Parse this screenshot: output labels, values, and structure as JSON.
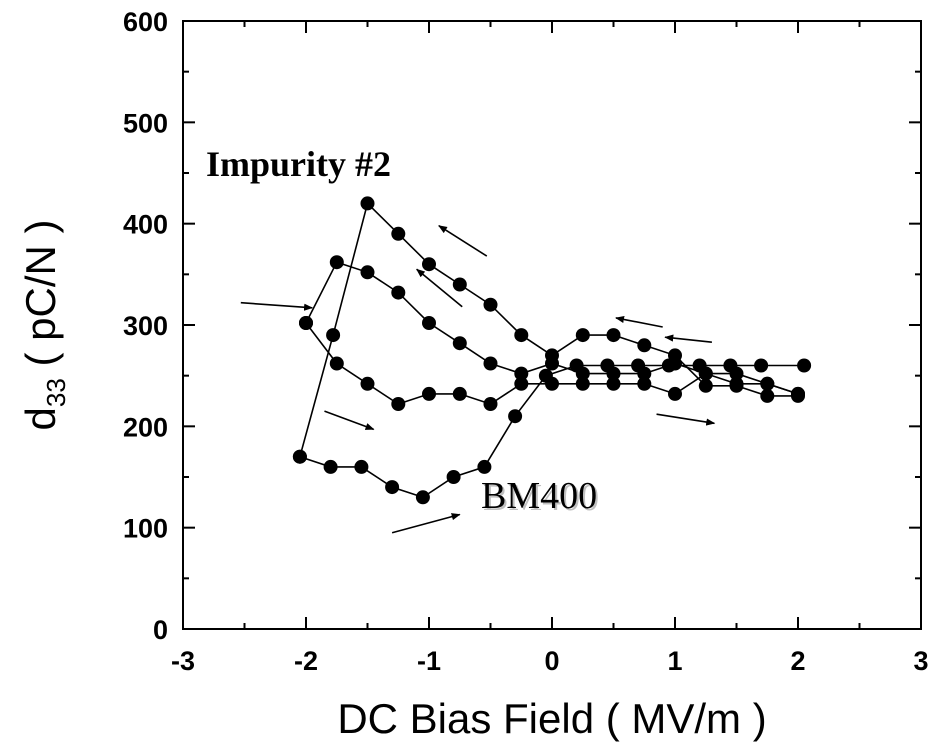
{
  "chart_data": {
    "type": "scatter",
    "title": "",
    "xlabel": "DC Bias Field ( MV/m )",
    "ylabel": "d33 ( pC/N )",
    "ylabel_main": "d",
    "ylabel_sub": "33",
    "ylabel_rest": " ( pC/N )",
    "xlim": [
      -3,
      3
    ],
    "ylim": [
      0,
      600
    ],
    "xticks": [
      "-3",
      "-2",
      "-1",
      "0",
      "1",
      "2",
      "3"
    ],
    "yticks": [
      "0",
      "100",
      "200",
      "300",
      "400",
      "500",
      "600"
    ],
    "grid": false,
    "legend": "none",
    "marker_color": "#000000",
    "series": [
      {
        "values": [
          [
            -2.05,
            170
          ],
          [
            -1.8,
            160
          ],
          [
            -1.55,
            160
          ],
          [
            -1.3,
            140
          ],
          [
            -1.05,
            130
          ],
          [
            -0.8,
            150
          ],
          [
            -0.55,
            160
          ],
          [
            -0.3,
            210
          ],
          [
            -0.05,
            250
          ],
          [
            0.2,
            260
          ],
          [
            0.45,
            260
          ],
          [
            0.7,
            260
          ],
          [
            0.95,
            260
          ],
          [
            1.2,
            260
          ],
          [
            1.45,
            260
          ],
          [
            1.7,
            260
          ],
          [
            2.05,
            260
          ]
        ]
      },
      {
        "values": [
          [
            2.0,
            230
          ],
          [
            1.75,
            230
          ],
          [
            1.5,
            240
          ],
          [
            1.25,
            240
          ],
          [
            1.0,
            270
          ],
          [
            0.75,
            280
          ],
          [
            0.5,
            290
          ],
          [
            0.25,
            290
          ],
          [
            0.0,
            270
          ],
          [
            -0.25,
            290
          ],
          [
            -0.5,
            320
          ],
          [
            -0.75,
            340
          ],
          [
            -1.0,
            360
          ],
          [
            -1.25,
            390
          ],
          [
            -1.5,
            420
          ],
          [
            -1.78,
            290
          ],
          [
            -2.05,
            170
          ]
        ]
      },
      {
        "values": [
          [
            -2.0,
            302
          ],
          [
            -1.75,
            262
          ],
          [
            -1.5,
            242
          ],
          [
            -1.25,
            222
          ],
          [
            -1.0,
            232
          ],
          [
            -0.75,
            232
          ],
          [
            -0.5,
            222
          ],
          [
            -0.25,
            242
          ],
          [
            0.0,
            242
          ],
          [
            0.25,
            242
          ],
          [
            0.5,
            242
          ],
          [
            0.75,
            242
          ],
          [
            1.0,
            232
          ],
          [
            1.25,
            252
          ],
          [
            1.5,
            252
          ],
          [
            1.75,
            242
          ],
          [
            2.0,
            232
          ]
        ]
      },
      {
        "values": [
          [
            2.0,
            232
          ],
          [
            1.75,
            242
          ],
          [
            1.5,
            242
          ],
          [
            1.25,
            252
          ],
          [
            1.0,
            262
          ],
          [
            0.75,
            252
          ],
          [
            0.5,
            252
          ],
          [
            0.25,
            252
          ],
          [
            0.0,
            262
          ],
          [
            -0.25,
            252
          ],
          [
            -0.5,
            262
          ],
          [
            -0.75,
            282
          ],
          [
            -1.0,
            302
          ],
          [
            -1.25,
            332
          ],
          [
            -1.5,
            352
          ],
          [
            -1.75,
            362
          ],
          [
            -2.0,
            302
          ]
        ]
      }
    ],
    "annotations": [
      {
        "text": "Impurity #2",
        "x": -2.48,
        "y": 455,
        "style": "bold"
      },
      {
        "text": "BM400",
        "x": -0.58,
        "y": 125,
        "style": "plain"
      }
    ],
    "arrows": [
      {
        "from": [
          -2.53,
          322
        ],
        "to": [
          -1.95,
          317
        ]
      },
      {
        "from": [
          -0.53,
          368
        ],
        "to": [
          -0.92,
          398
        ]
      },
      {
        "from": [
          -0.73,
          318
        ],
        "to": [
          -1.1,
          355
        ]
      },
      {
        "from": [
          -1.85,
          215
        ],
        "to": [
          -1.45,
          197
        ]
      },
      {
        "from": [
          -1.3,
          95
        ],
        "to": [
          -0.75,
          113
        ]
      },
      {
        "from": [
          0.9,
          298
        ],
        "to": [
          0.52,
          307
        ]
      },
      {
        "from": [
          1.3,
          283
        ],
        "to": [
          0.92,
          288
        ]
      },
      {
        "from": [
          0.85,
          212
        ],
        "to": [
          1.32,
          203
        ]
      }
    ]
  }
}
